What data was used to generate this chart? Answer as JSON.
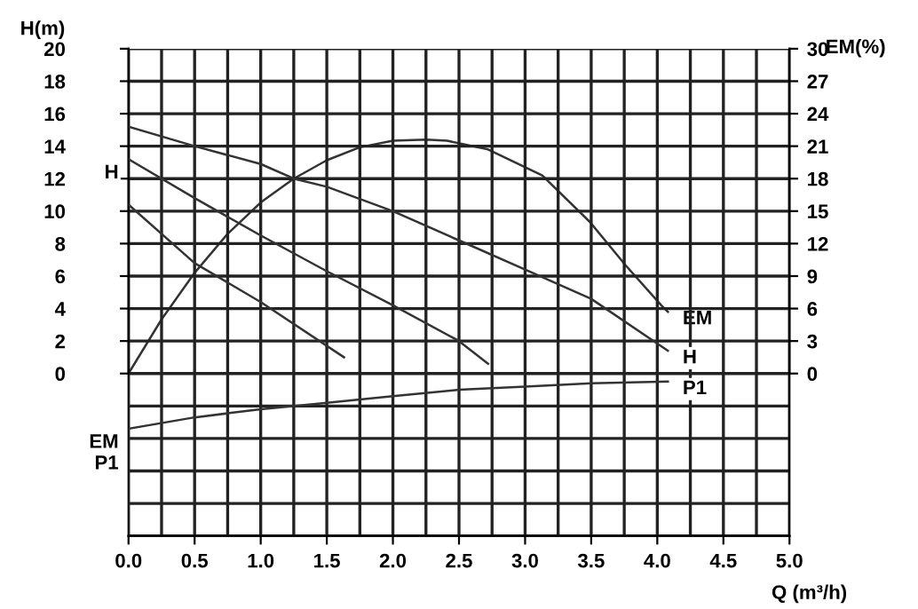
{
  "chart_data": {
    "type": "line",
    "xlabel": "Q (m³/h)",
    "ylabel": "H(m)",
    "y2label": "EM(%)",
    "xlim": [
      0,
      5
    ],
    "xticks": [
      {
        "value": 0,
        "label": "0.0"
      },
      {
        "value": 0.25,
        "label": null
      },
      0.5,
      {
        "value": 0.75,
        "label": null
      },
      {
        "value": 1,
        "label": "1.0"
      },
      {
        "value": 1.25,
        "label": null
      },
      1.5,
      {
        "value": 1.75,
        "label": null
      },
      {
        "value": 2,
        "label": "2.0"
      },
      {
        "value": 2.25,
        "label": null
      },
      2.5,
      {
        "value": 2.75,
        "label": null
      },
      {
        "value": 3,
        "label": "3.0"
      },
      {
        "value": 3.25,
        "label": null
      },
      3.5,
      {
        "value": 3.75,
        "label": null
      },
      {
        "value": 4,
        "label": "4.0"
      },
      {
        "value": 4.25,
        "label": null
      },
      4.5,
      {
        "value": 4.75,
        "label": null
      },
      {
        "value": 5,
        "label": "5.0"
      }
    ],
    "ylim": [
      -10,
      20
    ],
    "yticks": [
      {
        "value": -10,
        "label": null
      },
      {
        "value": -8,
        "label": null
      },
      {
        "value": -6,
        "label": null
      },
      {
        "value": -4,
        "label": null
      },
      {
        "value": -2,
        "label": null
      },
      0,
      2,
      4,
      6,
      8,
      10,
      12,
      14,
      16,
      18,
      20
    ],
    "y2lim": [
      -15,
      30
    ],
    "y2ticks": [
      0,
      3,
      6,
      9,
      12,
      15,
      18,
      21,
      24,
      27,
      30
    ],
    "grid": true,
    "legend": false,
    "marker": "none",
    "line_style": "solid",
    "series": [
      {
        "name": "H",
        "color": "#333333",
        "x": [
          0,
          0.5,
          1.0,
          1.25,
          1.5,
          2.0,
          2.5,
          3.0,
          3.5,
          4.08
        ],
        "values": [
          15.2,
          14.0,
          12.9,
          12.0,
          11.5,
          10.0,
          8.2,
          6.4,
          4.6,
          1.4
        ]
      },
      {
        "color": "#333333",
        "x": [
          0,
          0.5,
          1.0,
          1.5,
          2.0,
          2.5,
          2.72
        ],
        "values": [
          13.2,
          10.8,
          8.5,
          6.3,
          4.2,
          2.0,
          0.6
        ]
      },
      {
        "color": "#333333",
        "x": [
          0,
          0.5,
          1.0,
          1.63
        ],
        "values": [
          10.4,
          6.8,
          4.4,
          1.0
        ]
      },
      {
        "name": "EM",
        "axis": "y2",
        "color": "#333333",
        "x": [
          0,
          0.25,
          0.5,
          0.75,
          1.0,
          1.25,
          1.5,
          1.75,
          2.0,
          2.25,
          2.41,
          2.72,
          3.13,
          3.49,
          3.76,
          4.03,
          4.08
        ],
        "values": [
          0,
          5,
          9.3,
          12.9,
          15.8,
          18,
          19.7,
          20.9,
          21.5,
          21.6,
          21.5,
          20.7,
          18.3,
          14,
          10,
          6.3,
          5.7
        ]
      },
      {
        "name": "P1",
        "color": "#333333",
        "x": [
          0,
          0.5,
          1.0,
          1.5,
          2.0,
          2.5,
          3.0,
          3.5,
          4.08
        ],
        "values": [
          -3.4,
          -2.7,
          -2.2,
          -1.8,
          -1.4,
          -1.0,
          -0.8,
          -0.6,
          -0.5
        ]
      }
    ],
    "annotations": [
      {
        "text": "H",
        "x": 0,
        "y": 13.2
      },
      {
        "text": "EM\nP1",
        "x": 0,
        "y": -3.4
      }
    ]
  }
}
